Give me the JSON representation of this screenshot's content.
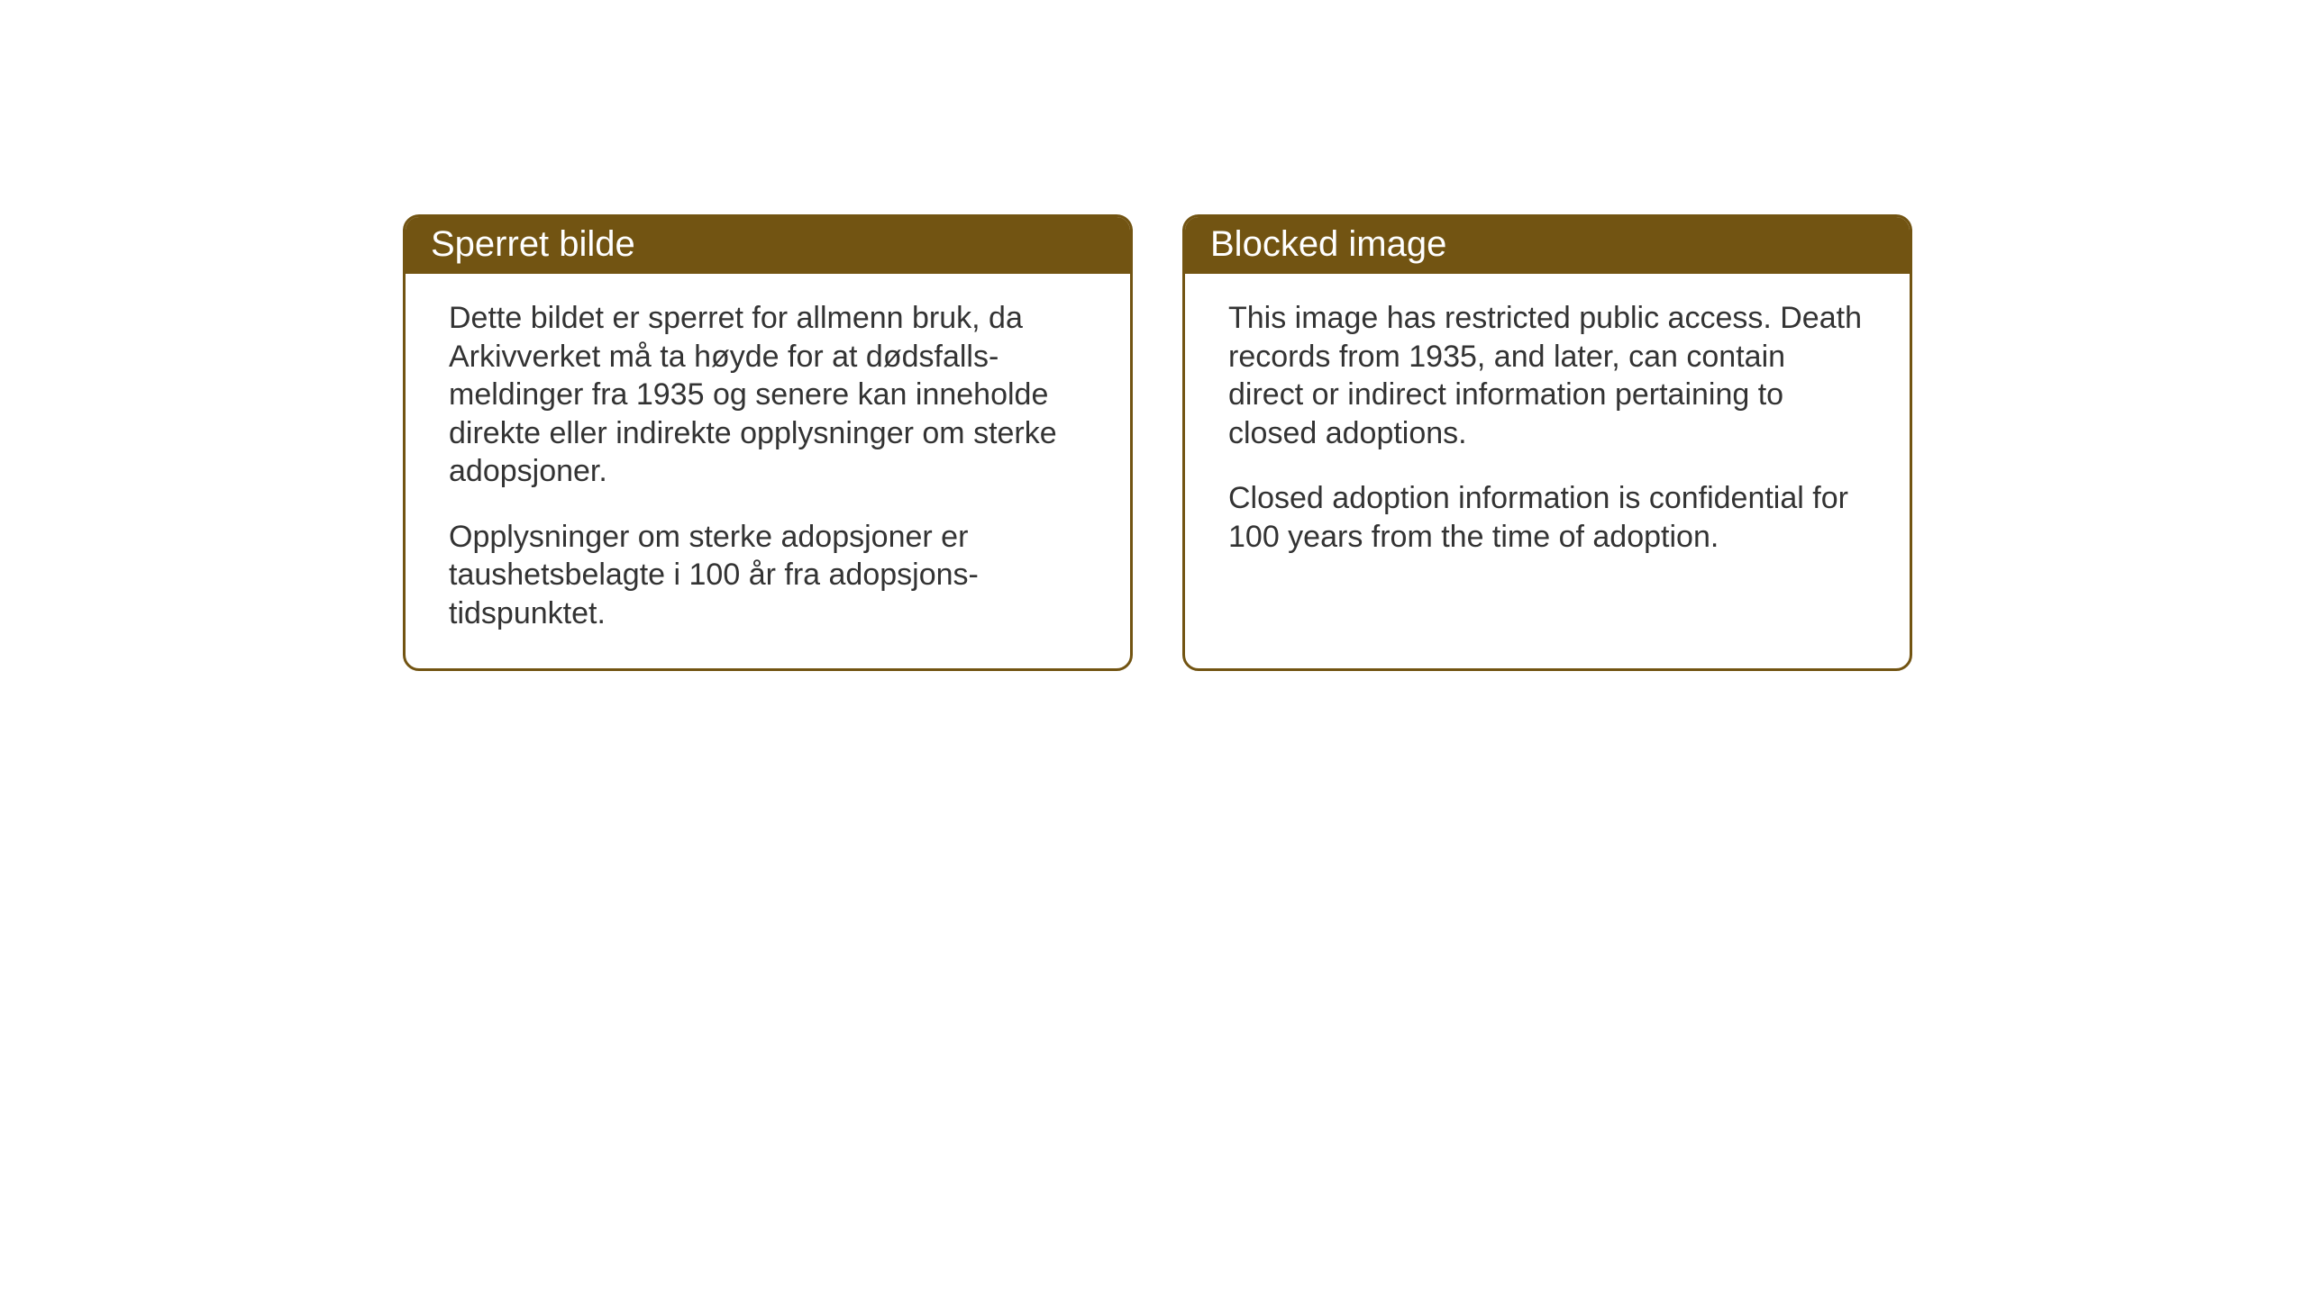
{
  "layout": {
    "background_color": "#ffffff",
    "card_border_color": "#725412",
    "card_header_bg": "#725412",
    "card_header_text_color": "#ffffff",
    "body_text_color": "#333333",
    "header_fontsize": 40,
    "body_fontsize": 34,
    "border_radius": 18,
    "border_width": 3,
    "gap": 55
  },
  "cards": {
    "norwegian": {
      "title": "Sperret bilde",
      "paragraph1": "Dette bildet er sperret for allmenn bruk, da Arkivverket må ta høyde for at dødsfalls-meldinger fra 1935 og senere kan inneholde direkte eller indirekte opplysninger om sterke adopsjoner.",
      "paragraph2": "Opplysninger om sterke adopsjoner er taushetsbelagte i 100 år fra adopsjons-tidspunktet."
    },
    "english": {
      "title": "Blocked image",
      "paragraph1": "This image has restricted public access. Death records from 1935, and later, can contain direct or indirect information pertaining to closed adoptions.",
      "paragraph2": "Closed adoption information is confidential for 100 years from the time of adoption."
    }
  }
}
